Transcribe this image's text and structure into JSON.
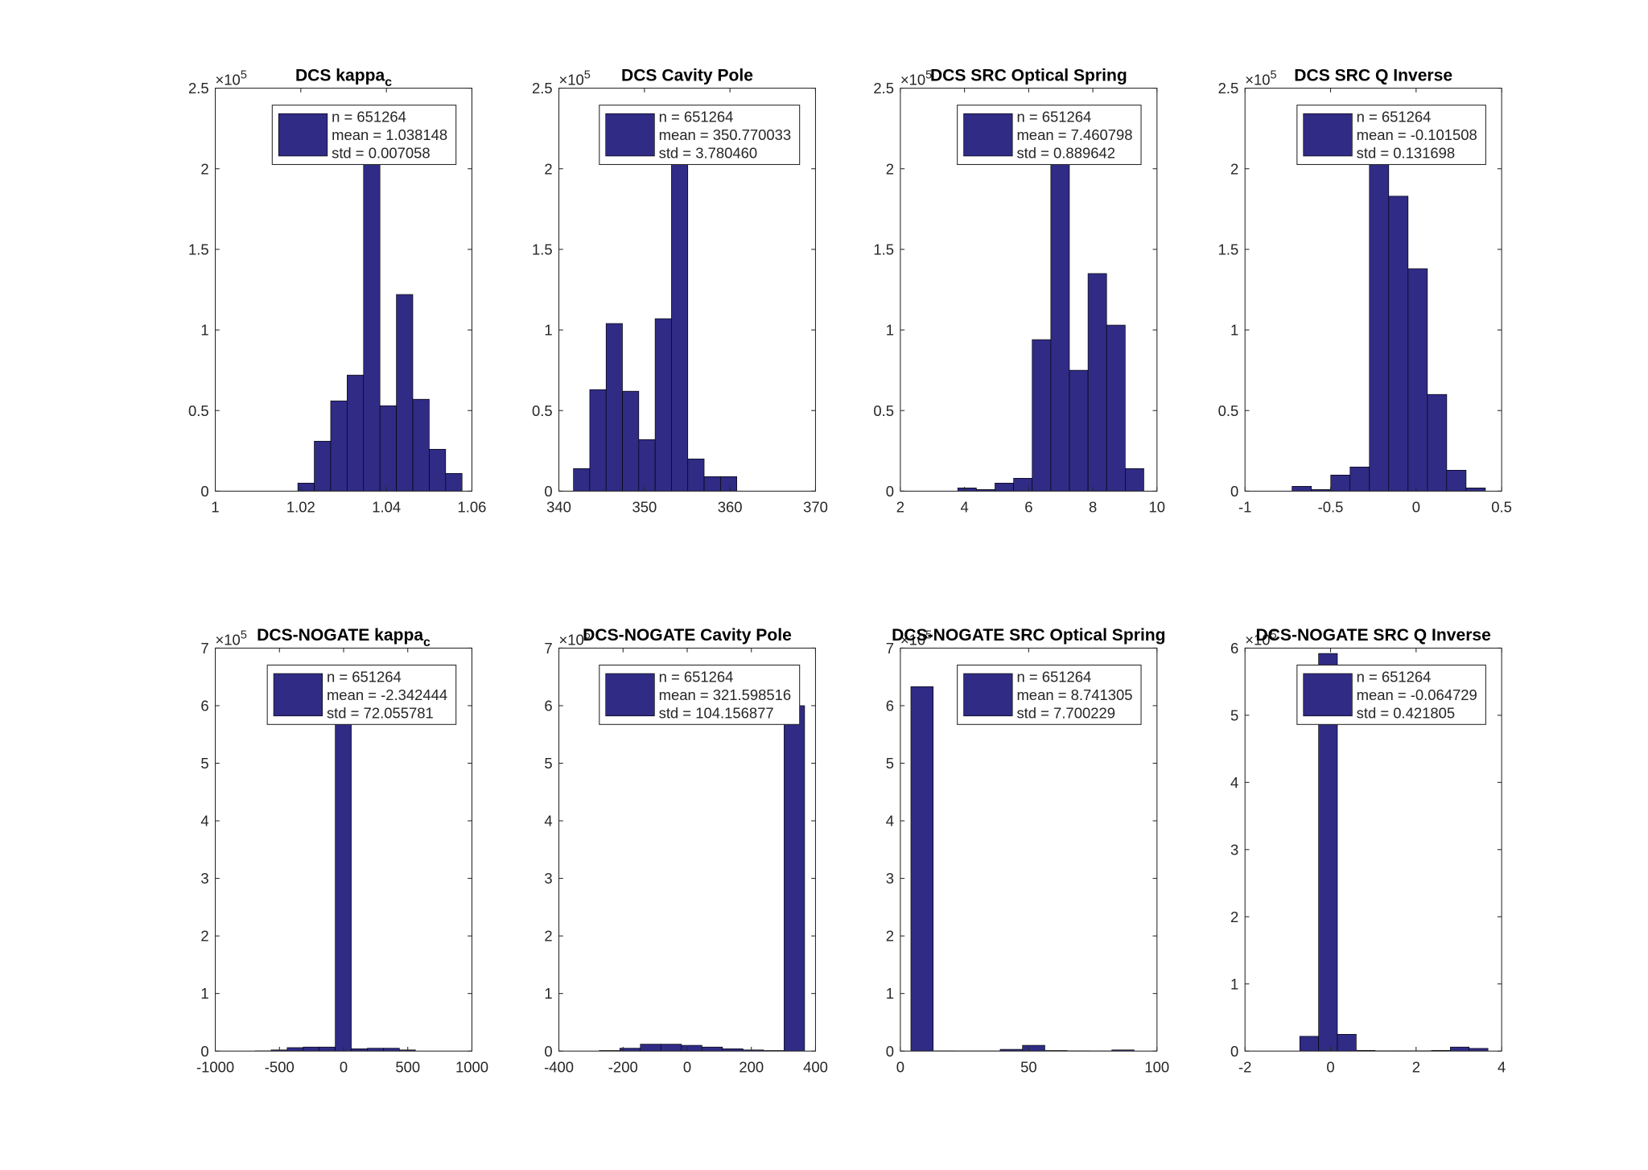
{
  "chart_data": [
    {
      "type": "histogram",
      "title": "DCS kappa",
      "title_subscript": "c",
      "color": "#302b85",
      "bins": [
        1.0193,
        1.02314,
        1.02698,
        1.03082,
        1.03466,
        1.0385,
        1.04234,
        1.04618,
        1.05002,
        1.05386,
        1.0577
      ],
      "values": [
        0.05,
        0.31,
        0.56,
        0.72,
        2.2,
        0.53,
        1.22,
        0.57,
        0.26,
        0.11
      ],
      "xlim": [
        1,
        1.06
      ],
      "xticks": [
        1,
        1.02,
        1.04,
        1.06
      ],
      "ylim": [
        0,
        2.5
      ],
      "yticks": [
        0,
        0.5,
        1,
        1.5,
        2,
        2.5
      ],
      "y_multiplier": "×10",
      "y_exponent": 5,
      "legend": [
        "n = 651264",
        "mean = 1.038148",
        "std = 0.007058"
      ]
    },
    {
      "type": "histogram",
      "title": "DCS Cavity Pole",
      "color": "#302b85",
      "bins": [
        341.7,
        343.61,
        345.52,
        347.43,
        349.34,
        351.25,
        353.16,
        355.07,
        356.98,
        358.89,
        360.8
      ],
      "values": [
        0.14,
        0.63,
        1.04,
        0.62,
        0.32,
        1.07,
        2.3,
        0.2,
        0.09,
        0.09
      ],
      "xlim": [
        340,
        370
      ],
      "xticks": [
        340,
        350,
        360,
        370
      ],
      "ylim": [
        0,
        2.5
      ],
      "yticks": [
        0,
        0.5,
        1,
        1.5,
        2,
        2.5
      ],
      "y_multiplier": "×10",
      "y_exponent": 5,
      "legend": [
        "n = 651264",
        "mean = 350.770033",
        "std = 3.780460"
      ]
    },
    {
      "type": "histogram",
      "title": "DCS SRC Optical Spring",
      "color": "#302b85",
      "bins": [
        3.79,
        4.37,
        4.95,
        5.53,
        6.11,
        6.69,
        7.27,
        7.85,
        8.43,
        9.01,
        9.59
      ],
      "values": [
        0.02,
        0.01,
        0.05,
        0.08,
        0.94,
        2.15,
        0.75,
        1.35,
        1.03,
        0.14
      ],
      "xlim": [
        2,
        10
      ],
      "xticks": [
        2,
        4,
        6,
        8,
        10
      ],
      "ylim": [
        0,
        2.5
      ],
      "yticks": [
        0,
        0.5,
        1,
        1.5,
        2,
        2.5
      ],
      "y_multiplier": "×10",
      "y_exponent": 5,
      "legend": [
        "n = 651264",
        "mean = 7.460798",
        "std = 0.889642"
      ]
    },
    {
      "type": "histogram",
      "title": "DCS SRC Q Inverse",
      "color": "#302b85",
      "bins": [
        -0.725,
        -0.612,
        -0.499,
        -0.386,
        -0.273,
        -0.16,
        -0.047,
        0.066,
        0.179,
        0.292,
        0.405
      ],
      "values": [
        0.03,
        0.01,
        0.1,
        0.15,
        2.25,
        1.83,
        1.38,
        0.6,
        0.13,
        0.02
      ],
      "xlim": [
        -1,
        0.5
      ],
      "xticks": [
        -1,
        -0.5,
        0,
        0.5
      ],
      "ylim": [
        0,
        2.5
      ],
      "yticks": [
        0,
        0.5,
        1,
        1.5,
        2,
        2.5
      ],
      "y_multiplier": "×10",
      "y_exponent": 5,
      "legend": [
        "n = 651264",
        "mean = -0.101508",
        "std = 0.131698"
      ]
    },
    {
      "type": "histogram",
      "title": "DCS-NOGATE kappa",
      "title_subscript": "c",
      "color": "#302b85",
      "bins": [
        -690,
        -565,
        -440,
        -315,
        -190,
        -65,
        60,
        185,
        310,
        435,
        560
      ],
      "values": [
        0.005,
        0.02,
        0.06,
        0.07,
        0.07,
        6.12,
        0.04,
        0.05,
        0.05,
        0.02
      ],
      "xlim": [
        -1000,
        1000
      ],
      "xticks": [
        -1000,
        -500,
        0,
        500,
        1000
      ],
      "ylim": [
        0,
        7
      ],
      "yticks": [
        0,
        1,
        2,
        3,
        4,
        5,
        6,
        7
      ],
      "y_multiplier": "×10",
      "y_exponent": 5,
      "legend": [
        "n = 651264",
        "mean = -2.342444",
        "std = 72.055781"
      ]
    },
    {
      "type": "histogram",
      "title": "DCS-NOGATE Cavity Pole",
      "color": "#302b85",
      "bins": [
        -274,
        -210,
        -146,
        -82,
        -18,
        46,
        110,
        174,
        238,
        302,
        366
      ],
      "values": [
        0.01,
        0.05,
        0.12,
        0.12,
        0.1,
        0.07,
        0.04,
        0.02,
        0.01,
        6.0
      ],
      "xlim": [
        -400,
        400
      ],
      "xticks": [
        -400,
        -200,
        0,
        200,
        400
      ],
      "ylim": [
        0,
        7
      ],
      "yticks": [
        0,
        1,
        2,
        3,
        4,
        5,
        6,
        7
      ],
      "y_multiplier": "×10",
      "y_exponent": 5,
      "legend": [
        "n = 651264",
        "mean = 321.598516",
        "std = 104.156877"
      ]
    },
    {
      "type": "histogram",
      "title": "DCS-NOGATE SRC Optical Spring",
      "color": "#302b85",
      "bins": [
        4.1,
        12.8,
        21.5,
        30.2,
        38.9,
        47.6,
        56.3,
        65,
        73.7,
        82.4,
        91.1
      ],
      "values": [
        6.33,
        0.005,
        0.003,
        0.003,
        0.03,
        0.1,
        0.01,
        0.005,
        0.003,
        0.02
      ],
      "xlim": [
        0,
        100
      ],
      "xticks": [
        0,
        50,
        100
      ],
      "ylim": [
        0,
        7
      ],
      "yticks": [
        0,
        1,
        2,
        3,
        4,
        5,
        6,
        7
      ],
      "y_multiplier": "×10",
      "y_exponent": 5,
      "legend": [
        "n = 651264",
        "mean = 8.741305",
        "std = 7.700229"
      ]
    },
    {
      "type": "histogram",
      "title": "DCS-NOGATE SRC Q Inverse",
      "color": "#302b85",
      "bins": [
        -0.72,
        -0.28,
        0.16,
        0.6,
        1.04,
        1.48,
        1.92,
        2.36,
        2.8,
        3.24,
        3.68
      ],
      "values": [
        0.22,
        5.92,
        0.25,
        0.01,
        0.005,
        0.005,
        0.005,
        0.01,
        0.06,
        0.04
      ],
      "xlim": [
        -2,
        4
      ],
      "xticks": [
        -2,
        0,
        2,
        4
      ],
      "ylim": [
        0,
        6
      ],
      "yticks": [
        0,
        1,
        2,
        3,
        4,
        5,
        6
      ],
      "y_multiplier": "×10",
      "y_exponent": 5,
      "legend": [
        "n = 651264",
        "mean = -0.064729",
        "std = 0.421805"
      ]
    }
  ]
}
